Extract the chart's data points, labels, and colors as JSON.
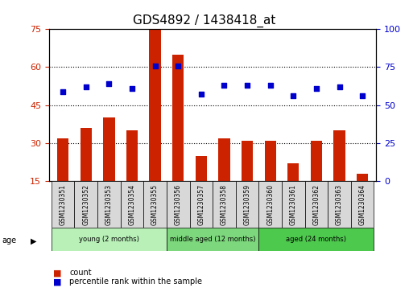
{
  "title": "GDS4892 / 1438418_at",
  "samples": [
    "GSM1230351",
    "GSM1230352",
    "GSM1230353",
    "GSM1230354",
    "GSM1230355",
    "GSM1230356",
    "GSM1230357",
    "GSM1230358",
    "GSM1230359",
    "GSM1230360",
    "GSM1230361",
    "GSM1230362",
    "GSM1230363",
    "GSM1230364"
  ],
  "counts": [
    32,
    36,
    40,
    35,
    75,
    65,
    25,
    32,
    31,
    31,
    22,
    31,
    35,
    18
  ],
  "percentiles": [
    59,
    62,
    64,
    61,
    76,
    76,
    57,
    63,
    63,
    63,
    56,
    61,
    62,
    56
  ],
  "count_baseline": 15,
  "ylim_left": [
    15,
    75
  ],
  "ylim_right": [
    0,
    100
  ],
  "yticks_left": [
    15,
    30,
    45,
    60,
    75
  ],
  "yticks_right": [
    0,
    25,
    50,
    75,
    100
  ],
  "groups": [
    {
      "label": "young (2 months)",
      "start": 0,
      "end": 5,
      "color": "#90EE90"
    },
    {
      "label": "middle aged (12 months)",
      "start": 5,
      "end": 9,
      "color": "#50C850"
    },
    {
      "label": "aged (24 months)",
      "start": 9,
      "end": 14,
      "color": "#50C850"
    }
  ],
  "group_colors": [
    "#b8f0b8",
    "#7dd87d",
    "#50d050"
  ],
  "bar_color": "#cc2200",
  "dot_color": "#0000cc",
  "background_color": "#ffffff",
  "plot_bg_color": "#ffffff",
  "legend_items": [
    "count",
    "percentile rank within the sample"
  ],
  "ylabel_left_color": "#cc2200",
  "ylabel_right_color": "#0000cc",
  "age_label": "age",
  "grid_color": "#000000",
  "tick_label_color_left": "#cc2200",
  "tick_label_color_right": "#0000cc"
}
